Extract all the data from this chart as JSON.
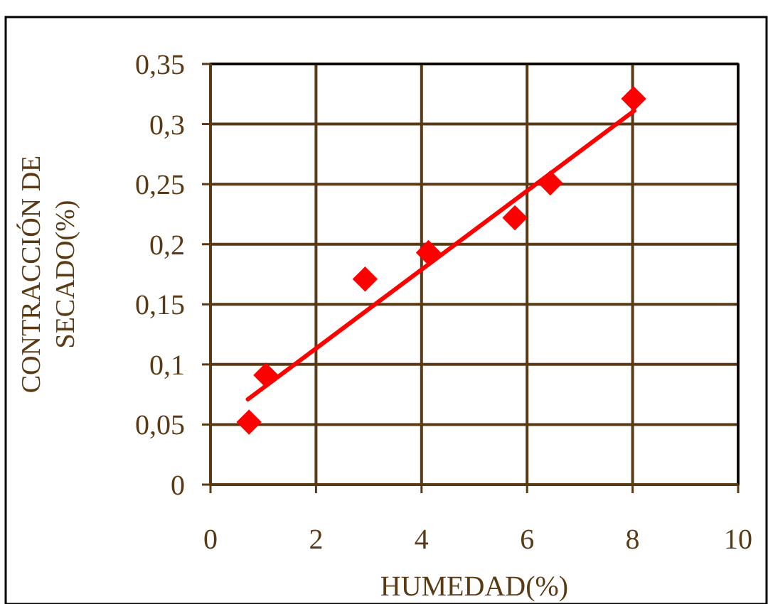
{
  "chart_data": {
    "type": "scatter",
    "xlabel": "HUMEDAD(%)",
    "ylabel": "CONTRACCIÓN DE\nSECADO(%)",
    "xlim": [
      0,
      10
    ],
    "xticks": [
      0,
      2,
      4,
      6,
      8,
      10
    ],
    "ylim": [
      0,
      0.35
    ],
    "yticks": [
      {
        "value": 0,
        "label": "0"
      },
      {
        "value": 0.05,
        "label": "0,05"
      },
      {
        "value": 0.1,
        "label": "0,1"
      },
      {
        "value": 0.15,
        "label": "0,15"
      },
      {
        "value": 0.2,
        "label": "0,2"
      },
      {
        "value": 0.25,
        "label": "0,25"
      },
      {
        "value": 0.3,
        "label": "0,3"
      },
      {
        "value": 0.35,
        "label": "0,35"
      }
    ],
    "grid": true,
    "series": [
      {
        "color": "#ff0000",
        "marker": "diamond",
        "x": [
          0.73,
          1.05,
          2.93,
          4.13,
          5.77,
          6.44,
          8.02
        ],
        "values": [
          0.052,
          0.091,
          0.171,
          0.193,
          0.222,
          0.251,
          0.321
        ]
      },
      {
        "type": "line",
        "color": "#ff0000",
        "marker": "none",
        "line_style": "solid",
        "x": [
          0.71,
          8.03
        ],
        "values": [
          0.071,
          0.311
        ]
      }
    ]
  }
}
